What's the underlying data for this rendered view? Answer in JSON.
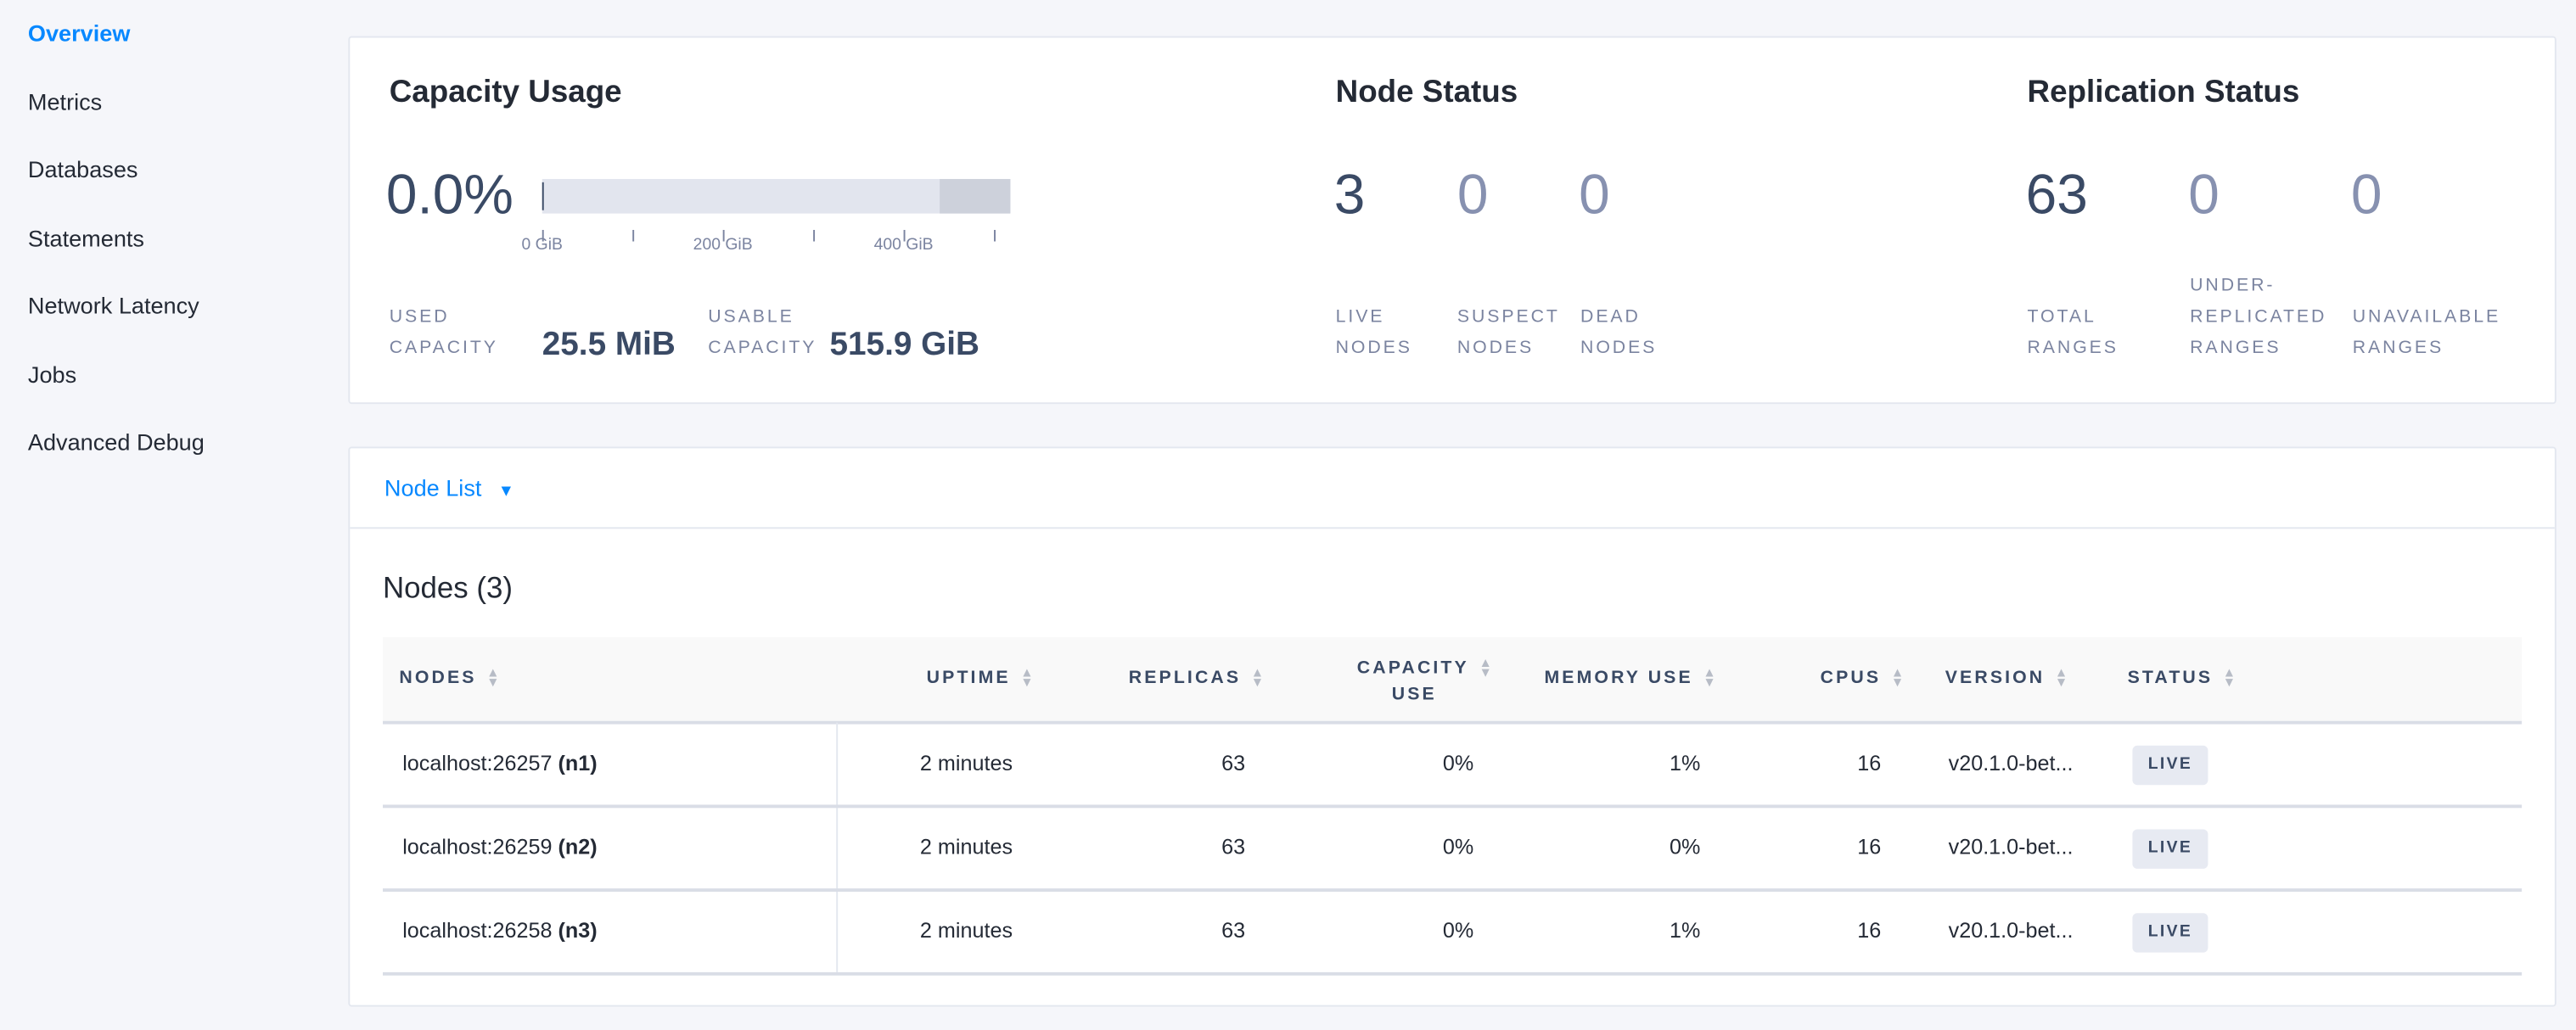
{
  "sidebar": {
    "items": [
      {
        "label": "Overview",
        "active": true
      },
      {
        "label": "Metrics"
      },
      {
        "label": "Databases"
      },
      {
        "label": "Statements"
      },
      {
        "label": "Network Latency"
      },
      {
        "label": "Jobs"
      },
      {
        "label": "Advanced Debug"
      }
    ]
  },
  "capacity": {
    "title": "Capacity Usage",
    "percent": "0.0%",
    "used_fraction": 0.0,
    "ticks": [
      "0 GiB",
      "200 GiB",
      "400 GiB"
    ],
    "used_label_1": "USED",
    "used_label_2": "CAPACITY",
    "used_value": "25.5 MiB",
    "usable_label_1": "USABLE",
    "usable_label_2": "CAPACITY",
    "usable_value": "515.9 GiB"
  },
  "node_status": {
    "title": "Node Status",
    "stats": [
      {
        "value": "3",
        "l1": "LIVE",
        "l2": "NODES"
      },
      {
        "value": "0",
        "l1": "SUSPECT",
        "l2": "NODES"
      },
      {
        "value": "0",
        "l1": "DEAD",
        "l2": "NODES"
      }
    ]
  },
  "replication": {
    "title": "Replication Status",
    "stats": [
      {
        "value": "63",
        "l0": "",
        "l1": "TOTAL",
        "l2": "RANGES"
      },
      {
        "value": "0",
        "l0": "UNDER-",
        "l1": "REPLICATED",
        "l2": "RANGES"
      },
      {
        "value": "0",
        "l0": "",
        "l1": "UNAVAILABLE",
        "l2": "RANGES"
      }
    ]
  },
  "node_list": {
    "dropdown_label": "Node List",
    "table_title": "Nodes (3)",
    "columns": [
      "NODES",
      "UPTIME",
      "REPLICAS",
      "CAPACITY",
      "USE",
      "MEMORY USE",
      "CPUS",
      "VERSION",
      "STATUS"
    ],
    "rows": [
      {
        "address": "localhost:26257",
        "id": "(n1)",
        "uptime": "2 minutes",
        "replicas": "63",
        "capacity": "0%",
        "memory": "1%",
        "cpus": "16",
        "version": "v20.1.0-bet...",
        "status": "LIVE"
      },
      {
        "address": "localhost:26259",
        "id": "(n2)",
        "uptime": "2 minutes",
        "replicas": "63",
        "capacity": "0%",
        "memory": "0%",
        "cpus": "16",
        "version": "v20.1.0-bet...",
        "status": "LIVE"
      },
      {
        "address": "localhost:26258",
        "id": "(n3)",
        "uptime": "2 minutes",
        "replicas": "63",
        "capacity": "0%",
        "memory": "1%",
        "cpus": "16",
        "version": "v20.1.0-bet...",
        "status": "LIVE"
      }
    ]
  },
  "colors": {
    "accent": "#0788ff",
    "text": "#242a35",
    "slate": "#3a4a65",
    "muted": "#7b84a0"
  }
}
